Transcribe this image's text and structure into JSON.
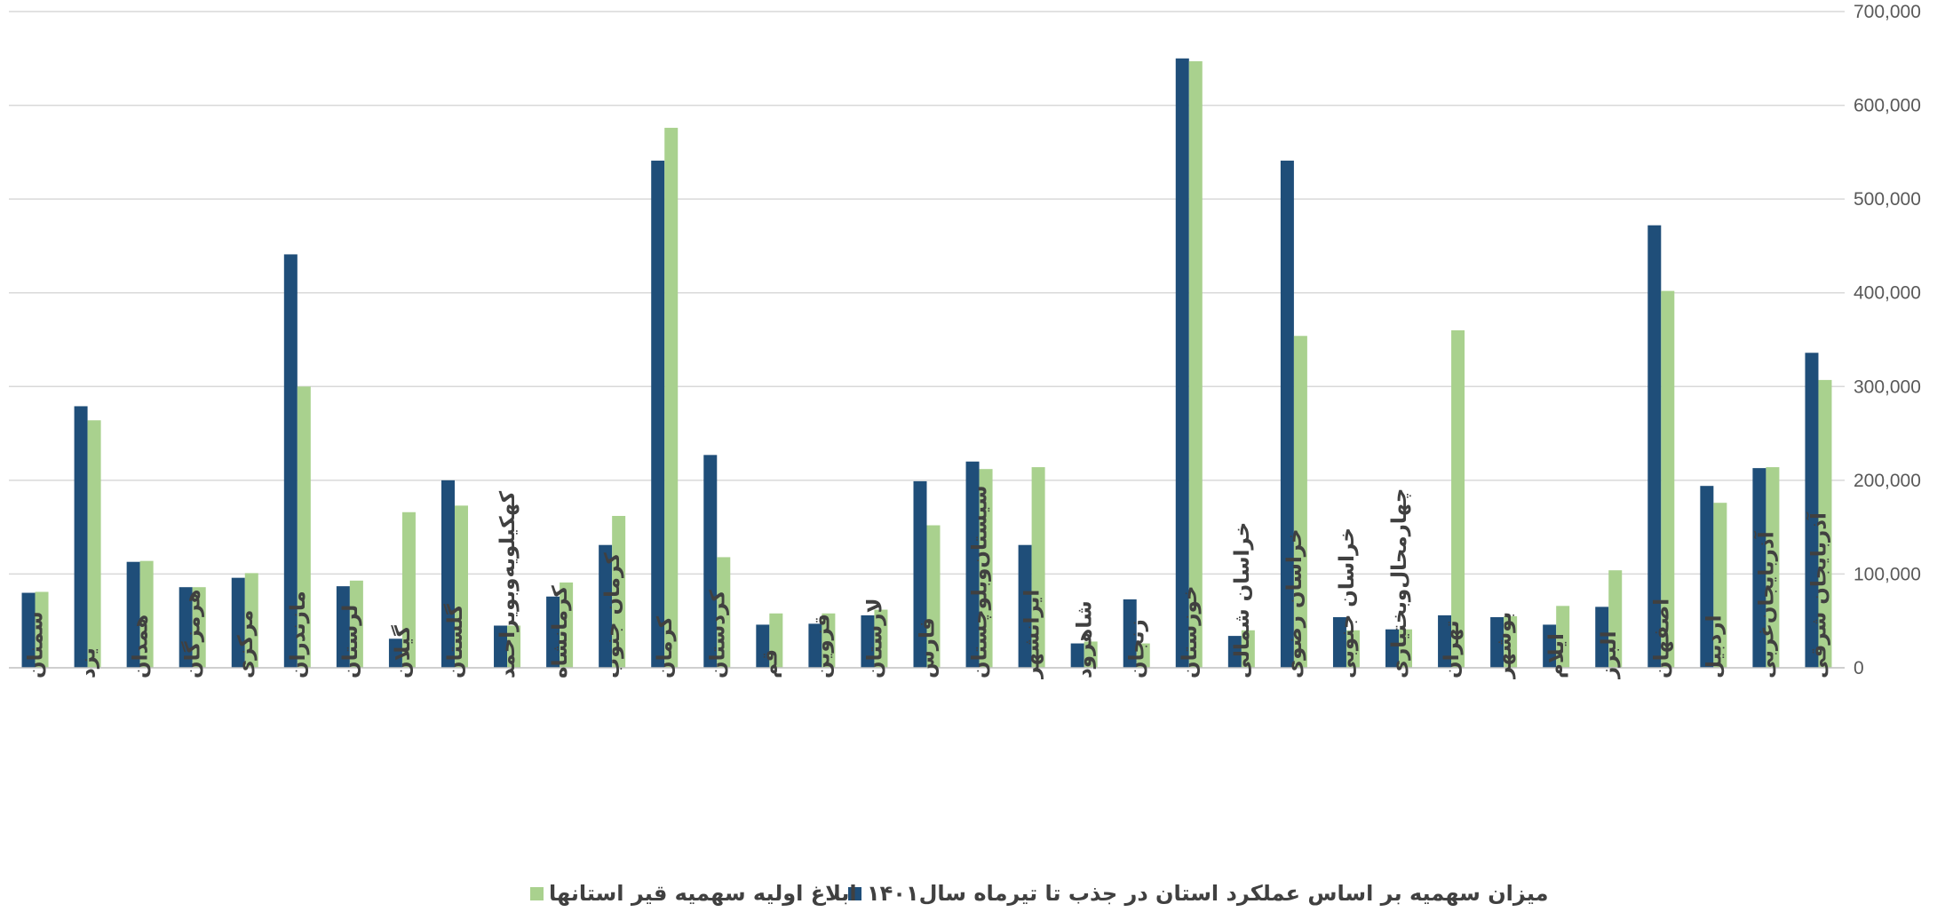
{
  "chart_data": {
    "type": "bar",
    "title": "",
    "xlabel": "",
    "ylabel": "",
    "ylim": [
      0,
      700000
    ],
    "y_ticks": [
      "0",
      "100,000",
      "200,000",
      "300,000",
      "400,000",
      "500,000",
      "600,000",
      "700,000"
    ],
    "y_axis_side": "right",
    "grid": true,
    "legend_position": "bottom",
    "categories": [
      "سمنان",
      "یزد",
      "همدان",
      "هرمزگان",
      "مرکزی",
      "مازندران",
      "لرستان",
      "گیلان",
      "گلستان",
      "کهکیلویه‌وبویراحمد",
      "کرمانشاه",
      "کرمان جنوب",
      "کرمان",
      "کردستان",
      "قم",
      "قزوین",
      "لارستان",
      "فارس",
      "سیستان‌وبلوچستان",
      "ایرانشهر",
      "شاهرود",
      "زنجان",
      "خوزستان",
      "خراسان شمالی",
      "خراسان رضوی",
      "خراسان جنوبی",
      "چهارمحال‌وبختیاری",
      "تهران",
      "بوشهر",
      "ایلام",
      "البرز",
      "اصفهان",
      "اردبیل",
      "آذربایجان‌غربی",
      "آذربایجان شرقی"
    ],
    "series": [
      {
        "name": "میزان سهمیه بر اساس عملکرد استان در جذب تا تیرماه سال۱۴۰۱",
        "color": "#1f4e79",
        "values": [
          80000,
          279000,
          113000,
          86000,
          96000,
          441000,
          87000,
          31000,
          200000,
          45000,
          76000,
          131000,
          541000,
          227000,
          46000,
          47000,
          56000,
          199000,
          220000,
          131000,
          26000,
          73000,
          650000,
          34000,
          541000,
          54000,
          41000,
          56000,
          54000,
          46000,
          65000,
          472000,
          194000,
          213000,
          336000
        ]
      },
      {
        "name": "ابلاغ  اولیه سهمیه قیر استانها",
        "color": "#a9d18e",
        "values": [
          81000,
          264000,
          114000,
          86000,
          101000,
          300000,
          93000,
          166000,
          173000,
          45000,
          91000,
          162000,
          576000,
          118000,
          58000,
          58000,
          62000,
          152000,
          212000,
          214000,
          28000,
          26000,
          647000,
          40000,
          354000,
          40000,
          41000,
          360000,
          55000,
          66000,
          104000,
          402000,
          176000,
          214000,
          307000
        ]
      }
    ]
  }
}
